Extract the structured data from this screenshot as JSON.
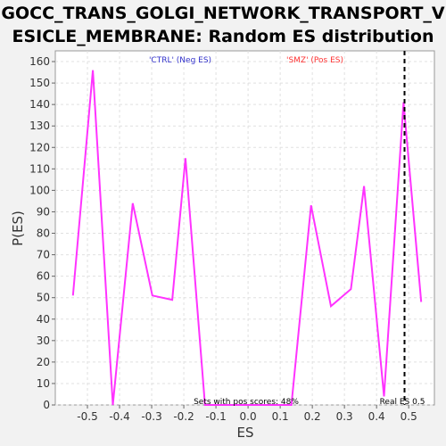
{
  "chart_data": {
    "type": "line",
    "title_line1": "GOCC_TRANS_GOLGI_NETWORK_TRANSPORT_V",
    "title_line2": "ESICLE_MEMBRANE: Random ES distribution",
    "xlabel": "ES",
    "ylabel": "P(ES)",
    "xlim": [
      -0.6,
      0.58
    ],
    "ylim": [
      0,
      165
    ],
    "xticks": [
      -0.5,
      -0.4,
      -0.3,
      -0.2,
      -0.1,
      0.0,
      0.1,
      0.2,
      0.3,
      0.4,
      0.5
    ],
    "xtick_labels": [
      "-0.5",
      "-0.4",
      "-0.3",
      "-0.2",
      "-0.1",
      "0.0",
      "0.1",
      "0.2",
      "0.3",
      "0.4",
      "0.5"
    ],
    "yticks": [
      0,
      10,
      20,
      30,
      40,
      50,
      60,
      70,
      80,
      90,
      100,
      110,
      120,
      130,
      140,
      150,
      160
    ],
    "grid": true,
    "series": [
      {
        "color": "#ff33ff",
        "x": [
          -0.545,
          -0.483,
          -0.421,
          -0.359,
          -0.298,
          -0.236,
          -0.195,
          -0.134,
          0.135,
          0.196,
          0.258,
          0.32,
          0.361,
          0.423,
          0.484,
          0.539
        ],
        "y": [
          51,
          156,
          0,
          94,
          51,
          49,
          115,
          0,
          0,
          93,
          46,
          54,
          102,
          4,
          141,
          48
        ]
      }
    ],
    "real_es_line": {
      "x": 0.487,
      "color": "#000000"
    },
    "annotations": {
      "neg_label": "'CTRL' (Neg ES)",
      "neg_color": "#3333cc",
      "pos_label": "'SMZ' (Pos ES)",
      "pos_color": "#ff3333",
      "sets_label": "Sets with pos scores: 48%",
      "real_es_label": "Real ES 0.5"
    }
  }
}
